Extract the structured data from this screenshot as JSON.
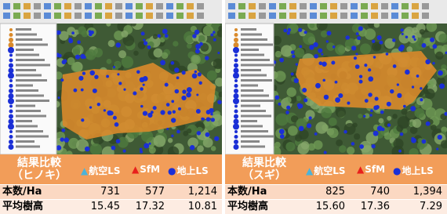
{
  "panels": [
    {
      "table": {
        "title": "結果比較",
        "subtitle": "（ヒノキ）",
        "columns": [
          "航空LS",
          "SfM",
          "地上LS"
        ],
        "rows": [
          [
            "本数/Ha",
            "731",
            "577",
            "1,214"
          ],
          [
            "平均樹高",
            "15.45",
            "17.32",
            "10.81"
          ]
        ]
      }
    },
    {
      "table": {
        "title": "結果比較",
        "subtitle": "（スギ）",
        "columns": [
          "航空LS",
          "SfM",
          "地上LS"
        ],
        "rows": [
          [
            "本数/Ha",
            "825",
            "740",
            "1,394"
          ],
          [
            "平均樹高",
            "15.60",
            "17.36",
            "7.29"
          ]
        ]
      }
    }
  ]
}
